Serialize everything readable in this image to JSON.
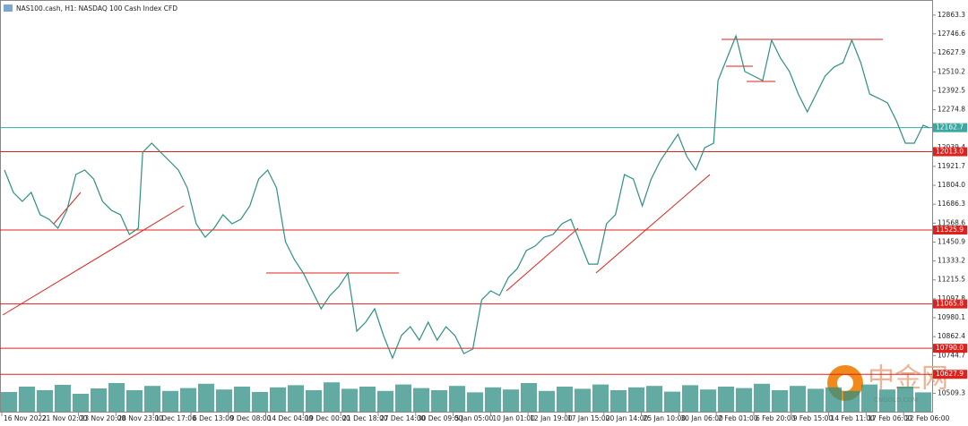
{
  "chart_data": {
    "type": "line",
    "title": "NAS100.cash, H1:  NASDAQ 100 Cash Index CFD",
    "x": [
      0.5,
      1.5,
      2.5,
      3.5,
      4.5,
      5.5,
      6.5,
      7.5,
      8.5,
      9.5,
      10.5,
      11.5,
      12.5,
      13.5,
      14.5,
      15.5,
      16,
      17,
      18,
      19,
      20,
      21,
      22,
      23,
      24,
      25,
      26,
      27,
      28,
      29,
      30,
      31,
      32,
      33,
      34,
      35,
      36,
      37,
      38,
      39,
      40,
      41,
      42,
      43,
      44,
      45,
      46,
      47,
      48,
      49,
      50,
      51,
      52,
      53,
      54,
      55,
      56,
      57,
      58,
      59,
      60,
      61,
      62,
      63,
      64,
      65,
      66,
      67,
      68,
      69,
      70,
      71,
      72,
      73,
      74,
      75,
      76,
      77,
      78,
      79,
      80,
      80.5,
      81.5,
      82.5,
      83.5,
      84.5,
      85.5,
      86.5,
      87.5,
      88.5,
      89.5,
      90.5,
      91.5,
      92.5,
      93.5,
      94.5,
      95.5,
      96.5,
      97.5,
      98.5,
      99.5,
      100.5,
      101.5,
      102.5,
      103.5,
      104.2
    ],
    "series": [
      {
        "name": "NAS100.cash",
        "color": "#2f8f83",
        "values": [
          11899,
          11760,
          11704,
          11760,
          11621,
          11593,
          11537,
          11648,
          11871,
          11899,
          11843,
          11704,
          11648,
          11621,
          11498,
          11537,
          12010,
          12066,
          12010,
          11955,
          11899,
          11788,
          11565,
          11481,
          11537,
          11621,
          11565,
          11593,
          11676,
          11843,
          11899,
          11788,
          11453,
          11342,
          11258,
          11147,
          11036,
          11119,
          11175,
          11258,
          10896,
          10952,
          11036,
          10869,
          10729,
          10869,
          10924,
          10841,
          10952,
          10841,
          10924,
          10869,
          10757,
          10785,
          11091,
          11147,
          11119,
          11231,
          11286,
          11398,
          11426,
          11481,
          11498,
          11565,
          11593,
          11453,
          11314,
          11314,
          11565,
          11621,
          11871,
          11843,
          11676,
          11843,
          11955,
          12038,
          12122,
          11983,
          11899,
          12038,
          12066,
          12456,
          12595,
          12734,
          12512,
          12484,
          12456,
          12707,
          12595,
          12512,
          12372,
          12261,
          12372,
          12484,
          12540,
          12567,
          12707,
          12567,
          12372,
          12345,
          12317,
          12205,
          12066,
          12066,
          12178,
          12161
        ]
      }
    ],
    "volume": {
      "color": "#2f8f83",
      "values": [
        55,
        70,
        60,
        75,
        50,
        65,
        80,
        60,
        72,
        58,
        66,
        78,
        62,
        70,
        55,
        68,
        74,
        60,
        82,
        64,
        70,
        58,
        76,
        66,
        60,
        72,
        54,
        68,
        62,
        80,
        58,
        70,
        64,
        76,
        60,
        68,
        72,
        56,
        74,
        62,
        70,
        66,
        78,
        60,
        72,
        64,
        68,
        58,
        76,
        62,
        70,
        54
      ],
      "lim": [
        0,
        100
      ]
    },
    "xlim": [
      0,
      104.5
    ],
    "xticks": [
      {
        "value": 0.2,
        "label": "16 Nov 2022"
      },
      {
        "value": 4.5,
        "label": "21 Nov 02:00"
      },
      {
        "value": 8.8,
        "label": "23 Nov 20:00"
      },
      {
        "value": 13,
        "label": "28 Nov 23:00"
      },
      {
        "value": 17.2,
        "label": "1 Dec 17:00"
      },
      {
        "value": 21.4,
        "label": "6 Dec 13:00"
      },
      {
        "value": 25.6,
        "label": "9 Dec 08:00"
      },
      {
        "value": 29.8,
        "label": "14 Dec 04:00"
      },
      {
        "value": 34,
        "label": "19 Dec 00:00"
      },
      {
        "value": 38.2,
        "label": "21 Dec 18:00"
      },
      {
        "value": 42.4,
        "label": "27 Dec 14:00"
      },
      {
        "value": 46.6,
        "label": "30 Dec 09:00"
      },
      {
        "value": 50.8,
        "label": "5 Jan 05:00"
      },
      {
        "value": 55,
        "label": "10 Jan 01:00"
      },
      {
        "value": 59.2,
        "label": "12 Jan 19:00"
      },
      {
        "value": 63.4,
        "label": "17 Jan 15:00"
      },
      {
        "value": 67.7,
        "label": "20 Jan 14:00"
      },
      {
        "value": 71.9,
        "label": "25 Jan 10:00"
      },
      {
        "value": 76.1,
        "label": "30 Jan 06:00"
      },
      {
        "value": 80.3,
        "label": "2 Feb 01:00"
      },
      {
        "value": 84.5,
        "label": "6 Feb 20:00"
      },
      {
        "value": 88.7,
        "label": "9 Feb 15:00"
      },
      {
        "value": 92.9,
        "label": "14 Feb 11:00"
      },
      {
        "value": 97.1,
        "label": "17 Feb 06:00"
      },
      {
        "value": 101.3,
        "label": "22 Feb 06:00"
      }
    ],
    "ylim": [
      10490,
      12935
    ],
    "yticks": [
      12863.3,
      12746.6,
      12627.9,
      12510.2,
      12392.5,
      12274.8,
      12039.4,
      11921.7,
      {
        "value": 11804,
        "label": "11804.0"
      },
      11686.3,
      11568.6,
      11450.9,
      11333.2,
      11215.5,
      11097.8,
      10980.1,
      10862.4,
      10744.7,
      10509.3
    ],
    "levels": [
      {
        "value": 12162.7,
        "color": "#3aa7a0"
      },
      {
        "value": 12013,
        "label": "12013.0",
        "color": "#e0201b"
      },
      {
        "value": 11525.9,
        "color": "#e0201b"
      },
      {
        "value": 11065.8,
        "color": "#e0201b"
      },
      {
        "value": 10790,
        "label": "10790.0",
        "color": "#e0201b"
      },
      {
        "value": 10627.9,
        "color": "#e0201b"
      }
    ],
    "watermark": {
      "title": "中金网",
      "subtitle": "CNGOLD.COM"
    }
  }
}
